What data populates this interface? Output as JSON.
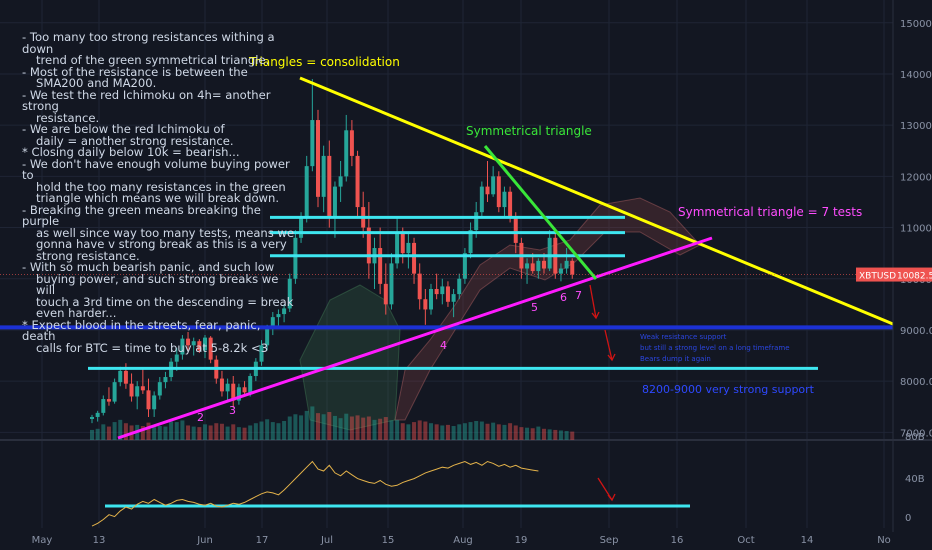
{
  "chart_data": {
    "type": "candlestick",
    "symbol_tag": "XBTUSD",
    "last_price": "10082.5",
    "price_axis": {
      "ticks": [
        "15000.0",
        "14000.0",
        "13000.0",
        "12000.0",
        "11000.0",
        "10000.0",
        "9000.0",
        "8000.0",
        "7000.0"
      ],
      "range": [
        6850,
        15250
      ]
    },
    "indicator_axis": {
      "ticks": [
        "80B",
        "40B",
        "0"
      ]
    },
    "time_axis": {
      "ticks": [
        "May",
        "13",
        "Jun",
        "17",
        "Jul",
        "15",
        "Aug",
        "19",
        "Sep",
        "16",
        "Oct",
        "14",
        "No"
      ]
    },
    "grid": true,
    "candles": [
      {
        "o": 7260,
        "h": 7340,
        "l": 7180,
        "c": 7300
      },
      {
        "o": 7300,
        "h": 7420,
        "l": 7210,
        "c": 7380
      },
      {
        "o": 7380,
        "h": 7720,
        "l": 7330,
        "c": 7650
      },
      {
        "o": 7650,
        "h": 7880,
        "l": 7520,
        "c": 7600
      },
      {
        "o": 7600,
        "h": 8050,
        "l": 7560,
        "c": 7980
      },
      {
        "o": 7980,
        "h": 8280,
        "l": 7900,
        "c": 8200
      },
      {
        "o": 8200,
        "h": 8350,
        "l": 7850,
        "c": 7950
      },
      {
        "o": 7950,
        "h": 8150,
        "l": 7600,
        "c": 7700
      },
      {
        "o": 7700,
        "h": 8000,
        "l": 7450,
        "c": 7900
      },
      {
        "o": 7900,
        "h": 8250,
        "l": 7750,
        "c": 7820
      },
      {
        "o": 7820,
        "h": 8050,
        "l": 7300,
        "c": 7450
      },
      {
        "o": 7450,
        "h": 7800,
        "l": 7300,
        "c": 7720
      },
      {
        "o": 7720,
        "h": 8080,
        "l": 7640,
        "c": 7980
      },
      {
        "o": 7980,
        "h": 8180,
        "l": 7860,
        "c": 8080
      },
      {
        "o": 8080,
        "h": 8450,
        "l": 8000,
        "c": 8380
      },
      {
        "o": 8380,
        "h": 8650,
        "l": 8200,
        "c": 8520
      },
      {
        "o": 8520,
        "h": 8900,
        "l": 8420,
        "c": 8830
      },
      {
        "o": 8830,
        "h": 8960,
        "l": 8600,
        "c": 8700
      },
      {
        "o": 8700,
        "h": 8850,
        "l": 8500,
        "c": 8780
      },
      {
        "o": 8780,
        "h": 8820,
        "l": 8550,
        "c": 8600
      },
      {
        "o": 8600,
        "h": 8900,
        "l": 8450,
        "c": 8850
      },
      {
        "o": 8850,
        "h": 8880,
        "l": 8350,
        "c": 8420
      },
      {
        "o": 8420,
        "h": 8500,
        "l": 7950,
        "c": 8050
      },
      {
        "o": 8050,
        "h": 8200,
        "l": 7700,
        "c": 7800
      },
      {
        "o": 7800,
        "h": 8050,
        "l": 7600,
        "c": 7950
      },
      {
        "o": 7950,
        "h": 8100,
        "l": 7480,
        "c": 7620
      },
      {
        "o": 7620,
        "h": 7950,
        "l": 7540,
        "c": 7880
      },
      {
        "o": 7880,
        "h": 8000,
        "l": 7700,
        "c": 7780
      },
      {
        "o": 7780,
        "h": 8150,
        "l": 7700,
        "c": 8100
      },
      {
        "o": 8100,
        "h": 8450,
        "l": 8000,
        "c": 8380
      },
      {
        "o": 8380,
        "h": 8800,
        "l": 8300,
        "c": 8700
      },
      {
        "o": 8700,
        "h": 9100,
        "l": 8600,
        "c": 9020
      },
      {
        "o": 9020,
        "h": 9350,
        "l": 8900,
        "c": 9250
      },
      {
        "o": 9250,
        "h": 9400,
        "l": 9050,
        "c": 9310
      },
      {
        "o": 9310,
        "h": 9500,
        "l": 9150,
        "c": 9420
      },
      {
        "o": 9420,
        "h": 10100,
        "l": 9350,
        "c": 10000
      },
      {
        "o": 10000,
        "h": 10950,
        "l": 9900,
        "c": 10800
      },
      {
        "o": 10800,
        "h": 11300,
        "l": 10700,
        "c": 11200
      },
      {
        "o": 11200,
        "h": 12400,
        "l": 11100,
        "c": 12200
      },
      {
        "o": 12200,
        "h": 13900,
        "l": 12100,
        "c": 13100
      },
      {
        "o": 13100,
        "h": 13300,
        "l": 11400,
        "c": 11600
      },
      {
        "o": 11600,
        "h": 12600,
        "l": 11300,
        "c": 12400
      },
      {
        "o": 12400,
        "h": 12700,
        "l": 11000,
        "c": 11200
      },
      {
        "o": 11200,
        "h": 11900,
        "l": 10800,
        "c": 11800
      },
      {
        "o": 11800,
        "h": 12300,
        "l": 11500,
        "c": 12000
      },
      {
        "o": 12000,
        "h": 13200,
        "l": 11900,
        "c": 12900
      },
      {
        "o": 12900,
        "h": 13100,
        "l": 12200,
        "c": 12400
      },
      {
        "o": 12400,
        "h": 12500,
        "l": 11200,
        "c": 11400
      },
      {
        "o": 11400,
        "h": 11700,
        "l": 10800,
        "c": 11000
      },
      {
        "o": 11000,
        "h": 11500,
        "l": 10000,
        "c": 10300
      },
      {
        "o": 10300,
        "h": 10800,
        "l": 9800,
        "c": 10600
      },
      {
        "o": 10600,
        "h": 11000,
        "l": 9700,
        "c": 9900
      },
      {
        "o": 9900,
        "h": 10300,
        "l": 9300,
        "c": 9500
      },
      {
        "o": 9500,
        "h": 10500,
        "l": 9400,
        "c": 10300
      },
      {
        "o": 10300,
        "h": 11200,
        "l": 10200,
        "c": 10900
      },
      {
        "o": 10900,
        "h": 11000,
        "l": 10300,
        "c": 10500
      },
      {
        "o": 10500,
        "h": 10900,
        "l": 10200,
        "c": 10700
      },
      {
        "o": 10700,
        "h": 10800,
        "l": 9900,
        "c": 10100
      },
      {
        "o": 10100,
        "h": 10300,
        "l": 9400,
        "c": 9600
      },
      {
        "o": 9600,
        "h": 9800,
        "l": 9100,
        "c": 9400
      },
      {
        "o": 9400,
        "h": 9900,
        "l": 9300,
        "c": 9800
      },
      {
        "o": 9800,
        "h": 10100,
        "l": 9600,
        "c": 9700
      },
      {
        "o": 9700,
        "h": 10000,
        "l": 9500,
        "c": 9850
      },
      {
        "o": 9850,
        "h": 9950,
        "l": 9450,
        "c": 9550
      },
      {
        "o": 9550,
        "h": 9800,
        "l": 9250,
        "c": 9700
      },
      {
        "o": 9700,
        "h": 10100,
        "l": 9600,
        "c": 10000
      },
      {
        "o": 10000,
        "h": 10600,
        "l": 9900,
        "c": 10500
      },
      {
        "o": 10500,
        "h": 11100,
        "l": 10400,
        "c": 10950
      },
      {
        "o": 10950,
        "h": 11500,
        "l": 10800,
        "c": 11300
      },
      {
        "o": 11300,
        "h": 11900,
        "l": 11200,
        "c": 11800
      },
      {
        "o": 11800,
        "h": 12300,
        "l": 11500,
        "c": 11650
      },
      {
        "o": 11650,
        "h": 12200,
        "l": 11600,
        "c": 12000
      },
      {
        "o": 12000,
        "h": 12100,
        "l": 11300,
        "c": 11400
      },
      {
        "o": 11400,
        "h": 11800,
        "l": 11200,
        "c": 11700
      },
      {
        "o": 11700,
        "h": 11800,
        "l": 11100,
        "c": 11200
      },
      {
        "o": 11200,
        "h": 11300,
        "l": 10500,
        "c": 10700
      },
      {
        "o": 10700,
        "h": 10800,
        "l": 10000,
        "c": 10200
      },
      {
        "o": 10200,
        "h": 10400,
        "l": 9900,
        "c": 10300
      },
      {
        "o": 10300,
        "h": 10500,
        "l": 10100,
        "c": 10150
      },
      {
        "o": 10150,
        "h": 10400,
        "l": 10000,
        "c": 10350
      },
      {
        "o": 10350,
        "h": 10500,
        "l": 10100,
        "c": 10200
      },
      {
        "o": 10200,
        "h": 10950,
        "l": 10150,
        "c": 10800
      },
      {
        "o": 10800,
        "h": 10900,
        "l": 10000,
        "c": 10100
      },
      {
        "o": 10100,
        "h": 10300,
        "l": 9950,
        "c": 10200
      },
      {
        "o": 10200,
        "h": 10600,
        "l": 10100,
        "c": 10350
      },
      {
        "o": 10350,
        "h": 10400,
        "l": 10000,
        "c": 10082
      }
    ],
    "volume_pane": {
      "max_volume": 7300,
      "volumes": [
        180,
        200,
        280,
        240,
        320,
        360,
        300,
        260,
        270,
        250,
        310,
        230,
        250,
        240,
        330,
        320,
        350,
        260,
        240,
        230,
        280,
        260,
        300,
        290,
        240,
        280,
        230,
        220,
        260,
        300,
        330,
        370,
        320,
        300,
        340,
        420,
        460,
        440,
        520,
        600,
        480,
        460,
        500,
        430,
        390,
        470,
        420,
        440,
        400,
        420,
        360,
        380,
        410,
        350,
        360,
        300,
        280,
        320,
        350,
        330,
        300,
        280,
        260,
        270,
        250,
        280,
        300,
        320,
        340,
        330,
        290,
        310,
        280,
        270,
        300,
        260,
        230,
        220,
        210,
        240,
        200,
        190,
        180,
        170,
        160,
        150
      ]
    },
    "indicator_series": [
      2,
      5,
      9,
      14,
      12,
      18,
      22,
      20,
      25,
      28,
      26,
      30,
      27,
      24,
      26,
      29,
      30,
      28,
      27,
      25,
      24,
      26,
      23,
      22,
      24,
      26,
      25,
      27,
      30,
      33,
      36,
      38,
      37,
      35,
      40,
      46,
      52,
      58,
      64,
      70,
      62,
      60,
      66,
      58,
      55,
      60,
      56,
      52,
      50,
      48,
      47,
      50,
      46,
      44,
      45,
      48,
      50,
      52,
      55,
      58,
      60,
      62,
      64,
      63,
      66,
      68,
      70,
      67,
      69,
      66,
      70,
      68,
      65,
      67,
      64,
      66,
      63,
      62,
      61,
      60
    ],
    "horizontal_levels": [
      11200,
      10900,
      10450,
      9050,
      8250
    ],
    "annotations": {
      "notes": [
        {
          "text": "- Too many too strong resistances withing a down",
          "indent": false
        },
        {
          "text": "trend of the green symmetrical triangle.",
          "indent": true
        },
        {
          "text": "- Most of the resistance is between the",
          "indent": false
        },
        {
          "text": "SMA200 and MA200.",
          "indent": true
        },
        {
          "text": "- We test the red Ichimoku on 4h= another strong",
          "indent": false
        },
        {
          "text": "resistance.",
          "indent": true
        },
        {
          "text": "- We are below the red Ichimoku of",
          "indent": false
        },
        {
          "text": "daily = another strong resistance.",
          "indent": true
        },
        {
          "text": "* Closing daily below 10k = bearish...",
          "indent": false
        },
        {
          "text": "- We don't have enough volume buying power to",
          "indent": false
        },
        {
          "text": "hold the too many resistances in the green",
          "indent": true
        },
        {
          "text": "triangle which means we will break down.",
          "indent": true
        },
        {
          "text": "- Breaking the green means breaking the purple",
          "indent": false
        },
        {
          "text": "as well since way too many tests, means we",
          "indent": true
        },
        {
          "text": "gonna have v strong break as this is a very",
          "indent": true
        },
        {
          "text": "strong resistance.",
          "indent": true
        },
        {
          "text": "- With so much bearish panic, and such low",
          "indent": false
        },
        {
          "text": "buying power, and such strong breaks we will",
          "indent": true
        },
        {
          "text": "touch a 3rd time on the descending = break",
          "indent": true
        },
        {
          "text": "even harder...",
          "indent": true
        },
        {
          "text": "* Expect blood in the streets, fear, panic, death",
          "indent": false
        },
        {
          "text": "calls for BTC = time to buy at 5-8.2k <3",
          "indent": true
        }
      ],
      "triangles_label": "Triangles = consolidation",
      "symmetrical_label": "Symmetrical triangle",
      "seven_tests_label": "Symmetrical triangle = 7 tests",
      "support_label": "8200-9000 very strong support",
      "test_numbers": [
        "2",
        "3",
        "4",
        "5",
        "6",
        "7"
      ],
      "blue_note_lines": [
        "Weak resistance support",
        "but still a strong level on a long timeframe",
        "Bears dump it again"
      ]
    },
    "colors": {
      "background": "#131722",
      "grid": "#1f2535",
      "up": "#26a69a",
      "down": "#ef5350",
      "descending_line": "#ffff00",
      "green_line": "#39e639",
      "purple_line": "#ff1aff",
      "levels": "#3ee6f0",
      "support_line": "#1c31d4",
      "arrows": "#d01414",
      "indicator": "#e3b24a",
      "price_tag": "#ef5350"
    }
  }
}
